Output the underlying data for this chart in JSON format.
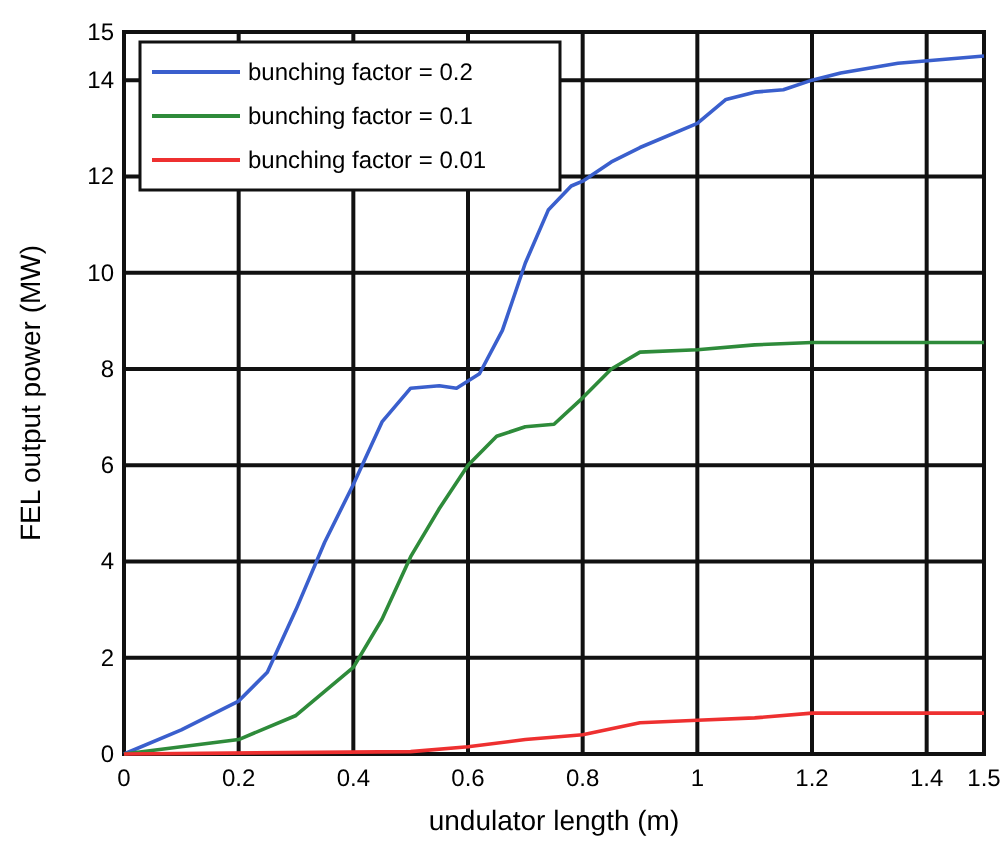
{
  "chart_data": {
    "type": "line",
    "xlabel": "undulator length (m)",
    "ylabel": "FEL output power (MW)",
    "xlim": [
      0,
      1.5
    ],
    "xticks": [
      0,
      0.2,
      0.4,
      0.6,
      0.8,
      1,
      1.2,
      1.4,
      1.5
    ],
    "ylim": [
      0,
      15
    ],
    "yticks": [
      0,
      2,
      4,
      6,
      8,
      10,
      12,
      14,
      15
    ],
    "grid": true,
    "legend": "top left",
    "line_style": "solid",
    "series": [
      {
        "name": "bunching factor = 0.2",
        "color": "#3a5fcd",
        "x": [
          0,
          0.1,
          0.2,
          0.25,
          0.3,
          0.35,
          0.4,
          0.45,
          0.5,
          0.55,
          0.58,
          0.62,
          0.66,
          0.7,
          0.74,
          0.78,
          0.8,
          0.85,
          0.9,
          1.0,
          1.05,
          1.1,
          1.15,
          1.2,
          1.25,
          1.35,
          1.5
        ],
        "values": [
          0,
          0.5,
          1.1,
          1.7,
          3,
          4.4,
          5.6,
          6.9,
          7.6,
          7.65,
          7.6,
          7.9,
          8.8,
          10.2,
          11.3,
          11.8,
          11.9,
          12.3,
          12.6,
          13.1,
          13.6,
          13.75,
          13.8,
          14.0,
          14.15,
          14.35,
          14.5
        ]
      },
      {
        "name": "bunching factor = 0.1",
        "color": "#2e8b3a",
        "x": [
          0,
          0.2,
          0.3,
          0.4,
          0.45,
          0.5,
          0.55,
          0.6,
          0.65,
          0.7,
          0.75,
          0.8,
          0.85,
          0.9,
          1.0,
          1.1,
          1.2,
          1.5
        ],
        "values": [
          0,
          0.3,
          0.8,
          1.8,
          2.8,
          4.1,
          5.1,
          6.0,
          6.6,
          6.8,
          6.85,
          7.4,
          8.0,
          8.35,
          8.4,
          8.5,
          8.55,
          8.55
        ]
      },
      {
        "name": "bunching factor = 0.01",
        "color": "#ee3030",
        "x": [
          0,
          0.5,
          0.6,
          0.7,
          0.8,
          0.9,
          1.0,
          1.1,
          1.2,
          1.5
        ],
        "values": [
          0,
          0.05,
          0.15,
          0.3,
          0.4,
          0.65,
          0.7,
          0.75,
          0.85,
          0.85
        ]
      }
    ]
  }
}
